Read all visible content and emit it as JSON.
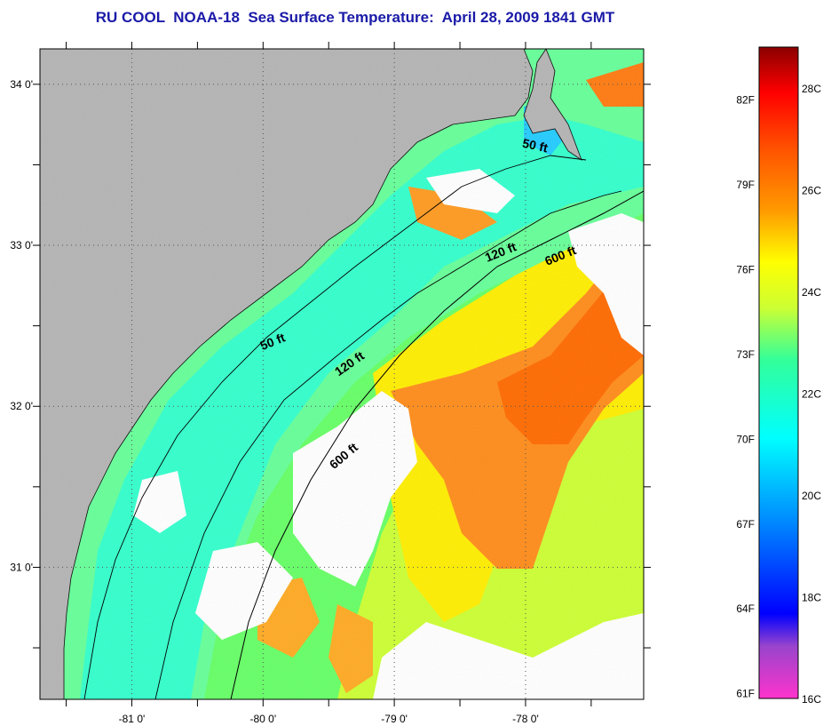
{
  "title": "RU COOL  NOAA-18  Sea Surface Temperature:  April 28, 2009 1841 GMT",
  "colors": {
    "title": "#1a1aa8",
    "land": "#b4b4b4",
    "cloud": "#ffffff",
    "frame": "#000000"
  },
  "map": {
    "lon_range": [
      -81.7,
      -77.1
    ],
    "lat_range": [
      30.18,
      34.22
    ],
    "lon_ticks": [
      {
        "value": -81,
        "label": "-81 0'"
      },
      {
        "value": -80,
        "label": "-80 0'"
      },
      {
        "value": -79,
        "label": "-79 0'"
      },
      {
        "value": -78,
        "label": "-78 0'"
      }
    ],
    "lat_ticks": [
      {
        "value": 34,
        "label": "34 0'"
      },
      {
        "value": 33,
        "label": "33 0'"
      },
      {
        "value": 32,
        "label": "32 0'"
      },
      {
        "value": 31,
        "label": "31 0'"
      }
    ],
    "grid": "dotted"
  },
  "contours": [
    {
      "label": "50 ft"
    },
    {
      "label": "120 ft"
    },
    {
      "label": "600 ft"
    },
    {
      "label": "50 ft"
    },
    {
      "label": "120 ft"
    },
    {
      "label": "600 ft"
    }
  ],
  "colorbar": {
    "range_c": [
      16,
      28.8
    ],
    "fahrenheit_labels": [
      "82F",
      "79F",
      "76F",
      "73F",
      "70F",
      "67F",
      "64F",
      "61F"
    ],
    "celsius_labels": [
      "28C",
      "26C",
      "24C",
      "22C",
      "20C",
      "18C",
      "16C"
    ],
    "stops": [
      "#ff33cc",
      "#8844cc",
      "#0000ff",
      "#0088ff",
      "#00ffff",
      "#33ff99",
      "#ccff33",
      "#ffff00",
      "#ff9900",
      "#ff4400",
      "#ff0000",
      "#8b0000"
    ]
  }
}
